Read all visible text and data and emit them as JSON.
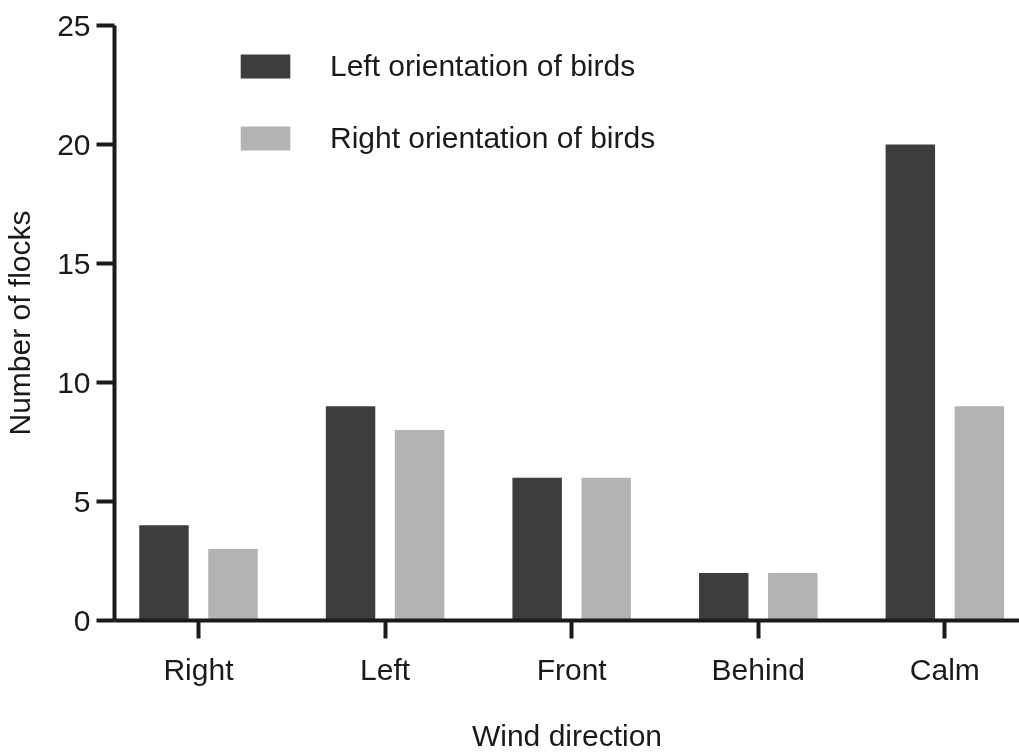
{
  "chart_data": {
    "type": "bar",
    "xlabel": "Wind direction",
    "ylabel": "Number of flocks",
    "categories": [
      "Right",
      "Left",
      "Front",
      "Behind",
      "Calm"
    ],
    "series": [
      {
        "name": "Left orientation of birds",
        "color": "#3d3d3d",
        "values": [
          4,
          9,
          6,
          2,
          20
        ]
      },
      {
        "name": "Right orientation of birds",
        "color": "#b3b3b3",
        "values": [
          3,
          8,
          6,
          2,
          9
        ]
      }
    ],
    "ylim": [
      0,
      25
    ],
    "yticks": [
      0,
      5,
      10,
      15,
      20,
      25
    ],
    "grid": false,
    "legend": "top left"
  }
}
